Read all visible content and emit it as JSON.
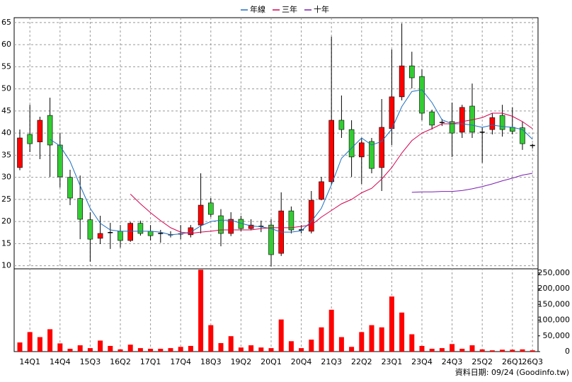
{
  "chart_data": [
    {
      "type": "candlestick",
      "legend_position": "top",
      "grid": true,
      "up_color": "#ff0000",
      "down_color": "#33cc33",
      "categories": [
        null,
        "14Q1",
        null,
        null,
        "14Q4",
        null,
        null,
        "15Q3",
        null,
        null,
        "16Q2",
        null,
        null,
        "17Q1",
        null,
        null,
        "17Q4",
        null,
        null,
        "18Q3",
        null,
        null,
        "19Q2",
        null,
        null,
        "20Q1",
        null,
        null,
        "20Q4",
        null,
        null,
        "21Q3",
        null,
        null,
        "22Q2",
        null,
        null,
        "23Q1",
        null,
        null,
        "23Q4",
        null,
        null,
        "24Q3",
        null,
        null,
        "25Q2",
        null,
        null,
        "26Q1",
        null,
        "26Q3"
      ],
      "open": [
        32.2,
        39.7,
        38.0,
        44.0,
        37.3,
        30.0,
        25.2,
        20.4,
        16.2,
        17.5,
        17.8,
        15.7,
        19.6,
        17.8,
        17.3,
        17.0,
        17.2,
        17.0,
        19.2,
        24.2,
        21.3,
        17.3,
        20.5,
        18.4,
        18.9,
        19.2,
        12.8,
        22.4,
        18.1,
        17.8,
        25.0,
        29.0,
        42.9,
        40.8,
        34.6,
        38.1,
        32.2,
        41.0,
        48.2,
        55.2,
        52.8,
        44.8,
        42.4,
        42.6,
        40.2,
        46.1,
        40.2,
        40.8,
        44.0,
        41.3,
        41.2,
        37.2
      ],
      "high": [
        40.8,
        46.4,
        43.7,
        48.0,
        40.0,
        31.7,
        30.4,
        22.1,
        21.3,
        19.7,
        19.2,
        19.9,
        20.2,
        19.2,
        18.1,
        17.8,
        19.2,
        19.2,
        30.9,
        25.3,
        22.8,
        22.1,
        21.3,
        20.5,
        20.2,
        20.5,
        26.6,
        23.4,
        19.2,
        26.9,
        30.1,
        61.8,
        48.5,
        42.9,
        38.9,
        38.9,
        47.7,
        58.9,
        64.8,
        58.4,
        54.4,
        45.3,
        43.2,
        46.9,
        46.4,
        51.2,
        41.3,
        44.5,
        46.4,
        45.8,
        42.6,
        37.6
      ],
      "low": [
        31.6,
        35.7,
        34.1,
        30.1,
        27.7,
        23.7,
        16.0,
        10.9,
        14.9,
        13.8,
        14.1,
        15.4,
        16.8,
        15.7,
        15.2,
        16.4,
        16.0,
        16.4,
        17.3,
        21.0,
        14.4,
        16.7,
        17.8,
        18.0,
        17.6,
        9.8,
        12.2,
        17.3,
        17.3,
        17.3,
        24.8,
        28.2,
        38.9,
        30.1,
        28.5,
        30.9,
        26.9,
        37.3,
        47.4,
        50.1,
        42.9,
        40.8,
        41.6,
        34.6,
        38.9,
        38.9,
        33.3,
        39.7,
        39.2,
        39.7,
        36.2,
        36.5
      ],
      "close": [
        38.9,
        37.6,
        42.9,
        37.3,
        30.1,
        25.3,
        20.5,
        16.0,
        17.3,
        17.5,
        15.7,
        19.6,
        17.3,
        16.8,
        17.3,
        17.0,
        17.2,
        18.6,
        23.7,
        21.6,
        17.3,
        20.5,
        18.4,
        19.2,
        18.9,
        12.5,
        22.4,
        18.1,
        18.1,
        24.8,
        29.0,
        42.9,
        40.8,
        34.6,
        37.8,
        32.0,
        41.3,
        48.2,
        55.2,
        52.5,
        44.5,
        41.8,
        42.4,
        40.0,
        45.8,
        40.2,
        40.2,
        43.5,
        40.8,
        40.4,
        37.6,
        37.2
      ],
      "series": [
        {
          "name": "年線",
          "color": "#1f6fc0",
          "values": [
            null,
            null,
            null,
            38.6,
            37.1,
            33.6,
            28.1,
            23.0,
            19.6,
            18.1,
            17.8,
            17.8,
            17.8,
            17.8,
            17.6,
            17.0,
            17.2,
            17.6,
            19.0,
            20.0,
            20.3,
            20.3,
            19.6,
            19.0,
            18.8,
            18.4,
            17.6,
            17.6,
            17.9,
            20.0,
            23.0,
            28.3,
            34.3,
            36.6,
            38.9,
            37.3,
            38.1,
            40.9,
            46.0,
            49.4,
            49.8,
            46.9,
            43.0,
            42.1,
            42.1,
            41.8,
            41.3,
            41.8,
            41.5,
            41.3,
            40.8,
            38.6
          ]
        },
        {
          "name": "三年",
          "color": "#d6004f",
          "values": [
            null,
            null,
            null,
            null,
            null,
            null,
            null,
            null,
            null,
            null,
            null,
            26.2,
            24.0,
            22.0,
            20.2,
            18.6,
            17.6,
            17.3,
            17.6,
            17.8,
            18.1,
            18.1,
            18.1,
            18.1,
            18.4,
            18.6,
            18.6,
            18.6,
            18.9,
            19.2,
            21.0,
            22.5,
            24.0,
            25.0,
            26.5,
            27.5,
            29.6,
            32.2,
            35.5,
            38.3,
            40.0,
            41.0,
            42.1,
            42.1,
            42.6,
            43.0,
            43.5,
            44.5,
            44.5,
            43.8,
            42.6,
            41.0
          ]
        },
        {
          "name": "十年",
          "color": "#7a1fb0",
          "values": [
            null,
            null,
            null,
            null,
            null,
            null,
            null,
            null,
            null,
            null,
            null,
            null,
            null,
            null,
            null,
            null,
            null,
            null,
            null,
            null,
            null,
            null,
            null,
            null,
            null,
            null,
            null,
            null,
            null,
            null,
            null,
            null,
            null,
            null,
            null,
            null,
            null,
            null,
            null,
            26.6,
            26.7,
            26.7,
            26.8,
            26.8,
            27.0,
            27.4,
            27.9,
            28.5,
            29.2,
            29.8,
            30.5,
            30.9
          ]
        }
      ],
      "ylim": [
        9.3,
        66.1
      ],
      "yticks": [
        10,
        15,
        20,
        25,
        30,
        35,
        40,
        45,
        50,
        55,
        60,
        65
      ],
      "note": "資料日期: 09/24 (Goodinfo.tw)"
    },
    {
      "type": "bar",
      "color": "#ff0000",
      "values": [
        29000,
        62000,
        46000,
        71000,
        26000,
        9000,
        20000,
        11000,
        35000,
        18000,
        7000,
        22000,
        11000,
        9000,
        9000,
        11000,
        15000,
        18000,
        260000,
        84000,
        27000,
        49000,
        13000,
        20000,
        13000,
        11000,
        102000,
        33000,
        11000,
        38000,
        77000,
        133000,
        46000,
        15000,
        62000,
        84000,
        77000,
        175000,
        124000,
        55000,
        18000,
        9000,
        11000,
        24000,
        9000,
        20000,
        7000,
        4000,
        6000,
        6000,
        7000,
        4000
      ],
      "ylim": [
        0,
        263000
      ],
      "yticks": [
        0,
        {
          "value": 50000,
          "label": "50,000"
        },
        {
          "value": 100000,
          "label": "100,000"
        },
        {
          "value": 150000,
          "label": "150,000"
        },
        {
          "value": 200000,
          "label": "200,000"
        },
        {
          "value": 250000,
          "label": "250,000"
        }
      ]
    }
  ]
}
